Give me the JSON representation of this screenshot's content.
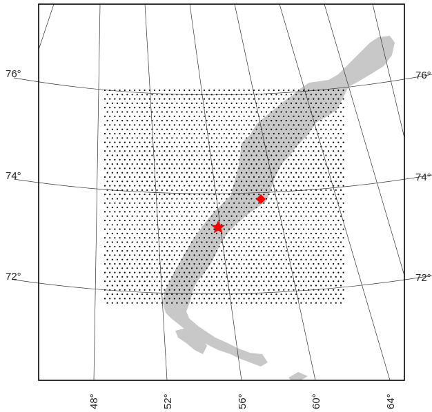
{
  "map": {
    "colors": {
      "land": "#c8c8c8",
      "grid_points": "#000000",
      "markers": "#ff0000",
      "frame": "#000000",
      "graticule": "#333333"
    },
    "latitude_labels": [
      {
        "value": 76,
        "text": "76°"
      },
      {
        "value": 74,
        "text": "74°"
      },
      {
        "value": 72,
        "text": "72°"
      }
    ],
    "longitude_labels": [
      {
        "value": 48,
        "text": "48°"
      },
      {
        "value": 52,
        "text": "52°"
      },
      {
        "value": 56,
        "text": "56°"
      },
      {
        "value": 60,
        "text": "60°"
      },
      {
        "value": 64,
        "text": "64°"
      }
    ],
    "markers": [
      {
        "name": "star-marker",
        "shape": "star",
        "color": "#ff0000"
      },
      {
        "name": "diamond-marker",
        "shape": "diamond",
        "color": "#ff0000"
      }
    ],
    "grid": {
      "description_shape": "regular point grid over the study region"
    }
  }
}
